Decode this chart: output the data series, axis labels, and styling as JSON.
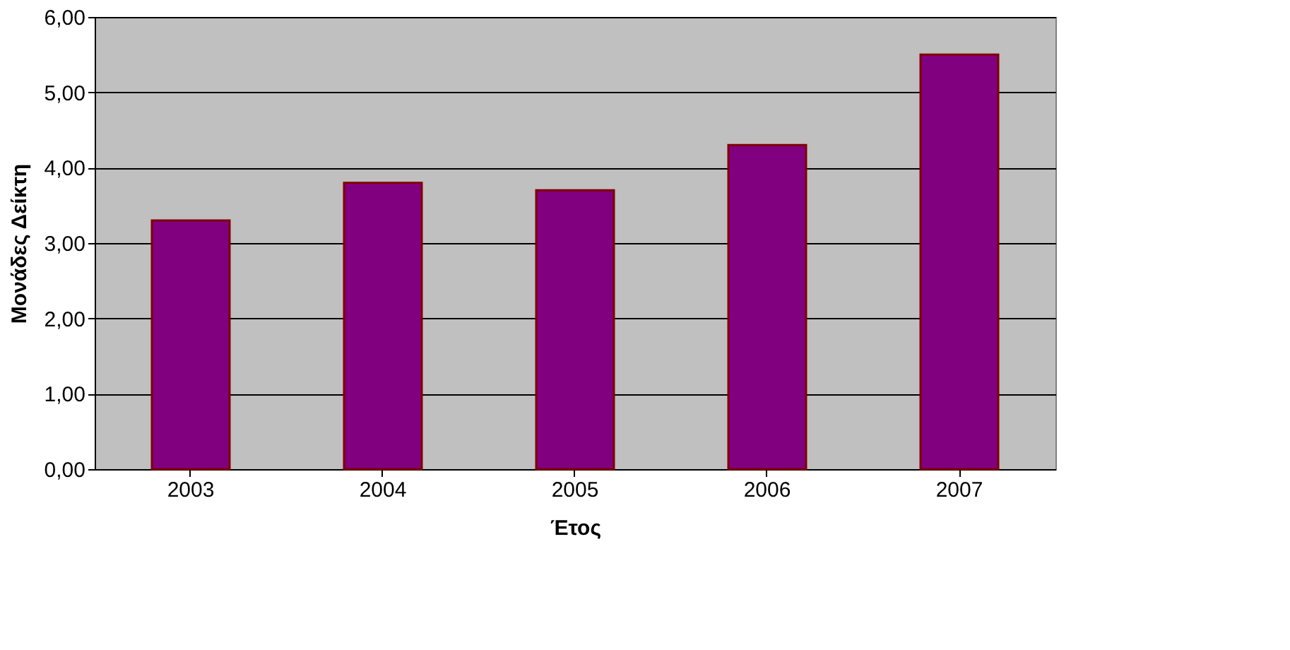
{
  "chart_data": {
    "type": "bar",
    "xlabel": "Έτος",
    "ylabel": "Μονάδες Δείκτη",
    "categories": [
      "2003",
      "2004",
      "2005",
      "2006",
      "2007"
    ],
    "values": [
      3.3,
      3.8,
      3.7,
      4.3,
      5.5
    ],
    "color": "#800080",
    "ylim": [
      0,
      6
    ],
    "yticks": [
      {
        "value": 0,
        "label": "0,00"
      },
      {
        "value": 1,
        "label": "1,00"
      },
      {
        "value": 2,
        "label": "2,00"
      },
      {
        "value": 3,
        "label": "3,00"
      },
      {
        "value": 4,
        "label": "4,00"
      },
      {
        "value": 5,
        "label": "5,00"
      },
      {
        "value": 6,
        "label": "6,00"
      }
    ],
    "grid": "y"
  }
}
